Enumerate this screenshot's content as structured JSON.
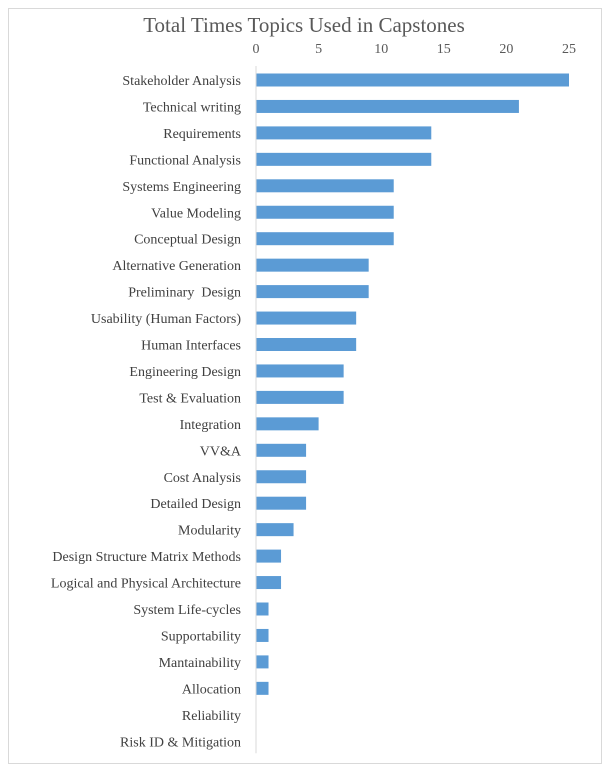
{
  "chart_data": {
    "type": "bar",
    "orientation": "horizontal",
    "title": "Total Times Topics Used in Capstones",
    "xlabel": "",
    "ylabel": "",
    "xlim": [
      0,
      25
    ],
    "x_ticks": [
      "0",
      "5",
      "10",
      "15",
      "20",
      "25"
    ],
    "axis_position": "top",
    "grid": false,
    "bar_color": "#5b9bd5",
    "categories": [
      "Stakeholder Analysis",
      "Technical writing",
      "Requirements",
      "Functional Analysis",
      "Systems Engineering",
      "Value Modeling",
      "Conceptual Design",
      "Alternative Generation",
      "Preliminary  Design",
      "Usability (Human Factors)",
      "Human Interfaces",
      "Engineering Design",
      "Test & Evaluation",
      "Integration",
      "VV&A",
      "Cost Analysis",
      "Detailed Design",
      "Modularity",
      "Design Structure Matrix Methods",
      "Logical and Physical Architecture",
      "System Life-cycles",
      "Supportability",
      "Mantainability",
      "Allocation",
      "Reliability",
      "Risk ID & Mitigation"
    ],
    "values": [
      25,
      21,
      14,
      14,
      11,
      11,
      11,
      9,
      9,
      8,
      8,
      7,
      7,
      5,
      4,
      4,
      4,
      3,
      2,
      2,
      1,
      1,
      1,
      1,
      0,
      0
    ]
  }
}
